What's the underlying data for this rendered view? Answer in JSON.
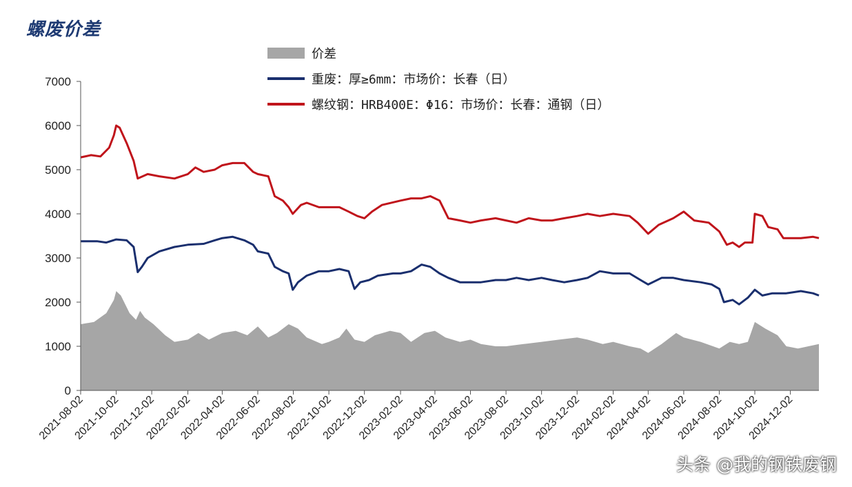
{
  "title": "螺废价差",
  "watermark": "头条 @我的钢铁废钢",
  "colors": {
    "spread": "#a6a6a6",
    "scrap": "#1a2f6e",
    "rebar": "#c0141b",
    "axis": "#555555",
    "title": "#1f3b73"
  },
  "legend": {
    "spread": "价差",
    "scrap": "重废：厚≥6mm：市场价：长春（日）",
    "rebar": "螺纹钢：HRB400E：Φ16：市场价：长春：通钢（日）"
  },
  "chart_data": {
    "type": "line",
    "x_range": [
      "2021-08-02",
      "2025-01-20"
    ],
    "ylim": [
      0,
      7000
    ],
    "yticks": [
      0,
      1000,
      2000,
      3000,
      4000,
      5000,
      6000,
      7000
    ],
    "xticks": [
      "2021-08-02",
      "2021-10-02",
      "2021-12-02",
      "2022-02-02",
      "2022-04-02",
      "2022-06-02",
      "2022-08-02",
      "2022-10-02",
      "2022-12-02",
      "2023-02-02",
      "2023-04-02",
      "2023-06-02",
      "2023-08-02",
      "2023-10-02",
      "2023-12-02",
      "2024-02-02",
      "2024-04-02",
      "2024-06-02",
      "2024-08-02",
      "2024-10-02",
      "2024-12-02"
    ],
    "grid": false,
    "series": [
      {
        "name": "价差",
        "key": "spread",
        "style": "area",
        "points": [
          [
            "2021-08-02",
            1500
          ],
          [
            "2021-08-25",
            1550
          ],
          [
            "2021-09-15",
            1750
          ],
          [
            "2021-09-28",
            2050
          ],
          [
            "2021-10-02",
            2250
          ],
          [
            "2021-10-10",
            2150
          ],
          [
            "2021-10-25",
            1750
          ],
          [
            "2021-11-05",
            1600
          ],
          [
            "2021-11-12",
            1800
          ],
          [
            "2021-11-20",
            1650
          ],
          [
            "2021-12-05",
            1500
          ],
          [
            "2021-12-25",
            1250
          ],
          [
            "2022-01-10",
            1100
          ],
          [
            "2022-02-02",
            1150
          ],
          [
            "2022-02-20",
            1300
          ],
          [
            "2022-03-10",
            1150
          ],
          [
            "2022-04-02",
            1300
          ],
          [
            "2022-04-25",
            1350
          ],
          [
            "2022-05-15",
            1250
          ],
          [
            "2022-06-02",
            1450
          ],
          [
            "2022-06-20",
            1200
          ],
          [
            "2022-07-05",
            1300
          ],
          [
            "2022-07-25",
            1500
          ],
          [
            "2022-08-10",
            1400
          ],
          [
            "2022-08-25",
            1200
          ],
          [
            "2022-09-20",
            1050
          ],
          [
            "2022-10-02",
            1100
          ],
          [
            "2022-10-20",
            1200
          ],
          [
            "2022-11-01",
            1400
          ],
          [
            "2022-11-15",
            1150
          ],
          [
            "2022-12-02",
            1100
          ],
          [
            "2022-12-20",
            1250
          ],
          [
            "2023-01-15",
            1350
          ],
          [
            "2023-02-02",
            1300
          ],
          [
            "2023-02-20",
            1100
          ],
          [
            "2023-03-15",
            1300
          ],
          [
            "2023-04-02",
            1350
          ],
          [
            "2023-04-20",
            1200
          ],
          [
            "2023-05-15",
            1100
          ],
          [
            "2023-06-02",
            1150
          ],
          [
            "2023-06-20",
            1050
          ],
          [
            "2023-07-15",
            1000
          ],
          [
            "2023-08-02",
            1000
          ],
          [
            "2023-09-01",
            1050
          ],
          [
            "2023-10-02",
            1100
          ],
          [
            "2023-11-01",
            1150
          ],
          [
            "2023-12-02",
            1200
          ],
          [
            "2023-12-20",
            1150
          ],
          [
            "2024-01-15",
            1050
          ],
          [
            "2024-02-02",
            1100
          ],
          [
            "2024-03-01",
            1000
          ],
          [
            "2024-03-20",
            950
          ],
          [
            "2024-04-02",
            850
          ],
          [
            "2024-04-25",
            1050
          ],
          [
            "2024-05-20",
            1300
          ],
          [
            "2024-06-02",
            1200
          ],
          [
            "2024-07-01",
            1100
          ],
          [
            "2024-08-02",
            950
          ],
          [
            "2024-08-20",
            1100
          ],
          [
            "2024-09-05",
            1050
          ],
          [
            "2024-09-20",
            1100
          ],
          [
            "2024-10-02",
            1550
          ],
          [
            "2024-10-20",
            1400
          ],
          [
            "2024-11-10",
            1250
          ],
          [
            "2024-11-25",
            1000
          ],
          [
            "2024-12-15",
            950
          ],
          [
            "2025-01-20",
            1050
          ]
        ]
      },
      {
        "name": "重废：厚≥6mm：市场价：长春（日）",
        "key": "scrap",
        "style": "line",
        "points": [
          [
            "2021-08-02",
            3380
          ],
          [
            "2021-08-30",
            3380
          ],
          [
            "2021-09-15",
            3350
          ],
          [
            "2021-10-02",
            3420
          ],
          [
            "2021-10-20",
            3400
          ],
          [
            "2021-11-01",
            3250
          ],
          [
            "2021-11-08",
            2680
          ],
          [
            "2021-11-15",
            2800
          ],
          [
            "2021-11-25",
            3000
          ],
          [
            "2021-12-15",
            3150
          ],
          [
            "2022-01-10",
            3250
          ],
          [
            "2022-02-02",
            3300
          ],
          [
            "2022-03-01",
            3320
          ],
          [
            "2022-03-20",
            3400
          ],
          [
            "2022-04-02",
            3450
          ],
          [
            "2022-04-20",
            3480
          ],
          [
            "2022-05-10",
            3400
          ],
          [
            "2022-05-25",
            3300
          ],
          [
            "2022-06-02",
            3150
          ],
          [
            "2022-06-20",
            3100
          ],
          [
            "2022-07-01",
            2800
          ],
          [
            "2022-07-15",
            2700
          ],
          [
            "2022-07-25",
            2650
          ],
          [
            "2022-08-01",
            2280
          ],
          [
            "2022-08-10",
            2450
          ],
          [
            "2022-08-25",
            2600
          ],
          [
            "2022-09-15",
            2700
          ],
          [
            "2022-10-02",
            2700
          ],
          [
            "2022-10-20",
            2750
          ],
          [
            "2022-11-05",
            2700
          ],
          [
            "2022-11-15",
            2300
          ],
          [
            "2022-11-25",
            2450
          ],
          [
            "2022-12-10",
            2500
          ],
          [
            "2022-12-25",
            2600
          ],
          [
            "2023-01-20",
            2650
          ],
          [
            "2023-02-02",
            2650
          ],
          [
            "2023-02-20",
            2700
          ],
          [
            "2023-03-10",
            2850
          ],
          [
            "2023-03-25",
            2800
          ],
          [
            "2023-04-10",
            2650
          ],
          [
            "2023-04-25",
            2550
          ],
          [
            "2023-05-15",
            2450
          ],
          [
            "2023-06-02",
            2450
          ],
          [
            "2023-06-20",
            2450
          ],
          [
            "2023-07-15",
            2500
          ],
          [
            "2023-08-02",
            2500
          ],
          [
            "2023-08-20",
            2550
          ],
          [
            "2023-09-10",
            2500
          ],
          [
            "2023-10-02",
            2550
          ],
          [
            "2023-10-20",
            2500
          ],
          [
            "2023-11-10",
            2450
          ],
          [
            "2023-12-02",
            2500
          ],
          [
            "2023-12-20",
            2550
          ],
          [
            "2024-01-10",
            2700
          ],
          [
            "2024-02-02",
            2650
          ],
          [
            "2024-03-01",
            2650
          ],
          [
            "2024-03-20",
            2500
          ],
          [
            "2024-04-02",
            2400
          ],
          [
            "2024-04-25",
            2550
          ],
          [
            "2024-05-15",
            2550
          ],
          [
            "2024-06-02",
            2500
          ],
          [
            "2024-07-01",
            2450
          ],
          [
            "2024-07-20",
            2400
          ],
          [
            "2024-08-02",
            2300
          ],
          [
            "2024-08-10",
            2000
          ],
          [
            "2024-08-25",
            2050
          ],
          [
            "2024-09-05",
            1950
          ],
          [
            "2024-09-20",
            2100
          ],
          [
            "2024-10-02",
            2280
          ],
          [
            "2024-10-15",
            2150
          ],
          [
            "2024-11-01",
            2200
          ],
          [
            "2024-11-25",
            2200
          ],
          [
            "2024-12-20",
            2250
          ],
          [
            "2025-01-10",
            2200
          ],
          [
            "2025-01-20",
            2150
          ]
        ]
      },
      {
        "name": "螺纹钢：HRB400E：Φ16：市场价：长春：通钢（日）",
        "key": "rebar",
        "style": "line",
        "points": [
          [
            "2021-08-02",
            5280
          ],
          [
            "2021-08-20",
            5330
          ],
          [
            "2021-09-05",
            5300
          ],
          [
            "2021-09-20",
            5500
          ],
          [
            "2021-09-28",
            5780
          ],
          [
            "2021-10-02",
            6000
          ],
          [
            "2021-10-08",
            5950
          ],
          [
            "2021-10-20",
            5600
          ],
          [
            "2021-11-01",
            5200
          ],
          [
            "2021-11-08",
            4800
          ],
          [
            "2021-11-25",
            4900
          ],
          [
            "2021-12-15",
            4850
          ],
          [
            "2022-01-10",
            4800
          ],
          [
            "2022-02-02",
            4900
          ],
          [
            "2022-02-15",
            5050
          ],
          [
            "2022-03-01",
            4950
          ],
          [
            "2022-03-20",
            5000
          ],
          [
            "2022-04-02",
            5100
          ],
          [
            "2022-04-20",
            5150
          ],
          [
            "2022-05-10",
            5150
          ],
          [
            "2022-05-25",
            4950
          ],
          [
            "2022-06-02",
            4900
          ],
          [
            "2022-06-20",
            4850
          ],
          [
            "2022-07-01",
            4400
          ],
          [
            "2022-07-15",
            4300
          ],
          [
            "2022-07-25",
            4150
          ],
          [
            "2022-08-01",
            4000
          ],
          [
            "2022-08-15",
            4200
          ],
          [
            "2022-08-25",
            4250
          ],
          [
            "2022-09-15",
            4150
          ],
          [
            "2022-10-02",
            4150
          ],
          [
            "2022-10-20",
            4150
          ],
          [
            "2022-11-05",
            4050
          ],
          [
            "2022-11-20",
            3950
          ],
          [
            "2022-12-02",
            3900
          ],
          [
            "2022-12-15",
            4050
          ],
          [
            "2023-01-01",
            4200
          ],
          [
            "2023-02-02",
            4300
          ],
          [
            "2023-02-20",
            4350
          ],
          [
            "2023-03-10",
            4350
          ],
          [
            "2023-03-25",
            4400
          ],
          [
            "2023-04-10",
            4300
          ],
          [
            "2023-04-25",
            3900
          ],
          [
            "2023-05-15",
            3850
          ],
          [
            "2023-06-02",
            3800
          ],
          [
            "2023-06-20",
            3850
          ],
          [
            "2023-07-15",
            3900
          ],
          [
            "2023-08-02",
            3850
          ],
          [
            "2023-08-20",
            3800
          ],
          [
            "2023-09-10",
            3900
          ],
          [
            "2023-10-02",
            3850
          ],
          [
            "2023-10-20",
            3850
          ],
          [
            "2023-11-10",
            3900
          ],
          [
            "2023-12-02",
            3950
          ],
          [
            "2023-12-20",
            4000
          ],
          [
            "2024-01-10",
            3950
          ],
          [
            "2024-02-02",
            4000
          ],
          [
            "2024-03-01",
            3950
          ],
          [
            "2024-03-15",
            3800
          ],
          [
            "2024-04-02",
            3550
          ],
          [
            "2024-04-20",
            3750
          ],
          [
            "2024-05-15",
            3900
          ],
          [
            "2024-06-02",
            4050
          ],
          [
            "2024-06-20",
            3850
          ],
          [
            "2024-07-15",
            3800
          ],
          [
            "2024-08-02",
            3600
          ],
          [
            "2024-08-15",
            3300
          ],
          [
            "2024-08-25",
            3350
          ],
          [
            "2024-09-05",
            3250
          ],
          [
            "2024-09-15",
            3350
          ],
          [
            "2024-09-28",
            3350
          ],
          [
            "2024-10-02",
            4000
          ],
          [
            "2024-10-15",
            3950
          ],
          [
            "2024-10-25",
            3700
          ],
          [
            "2024-11-10",
            3650
          ],
          [
            "2024-11-20",
            3450
          ],
          [
            "2024-12-10",
            3450
          ],
          [
            "2024-12-20",
            3450
          ],
          [
            "2025-01-10",
            3480
          ],
          [
            "2025-01-20",
            3450
          ]
        ]
      }
    ]
  }
}
